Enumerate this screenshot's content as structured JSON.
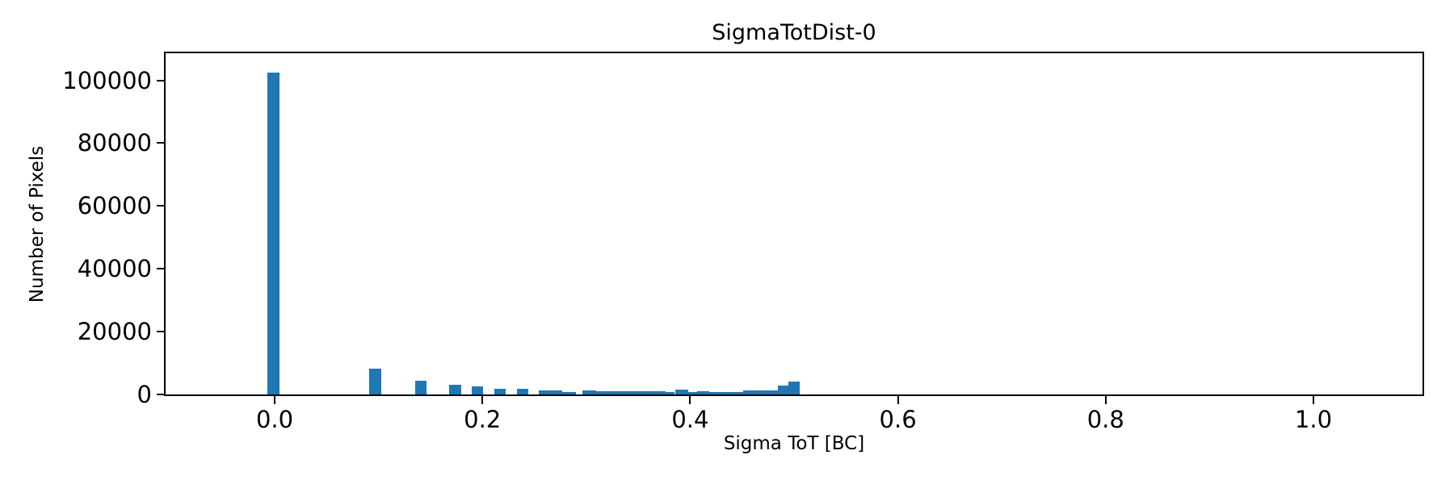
{
  "figure": {
    "background": "#ffffff",
    "text_color": "#000000"
  },
  "chart_data": {
    "type": "bar",
    "title": "SigmaTotDist-0",
    "xlabel": "Sigma ToT [BC]",
    "ylabel": "Number of Pixels",
    "xlim": [
      -0.105,
      1.105
    ],
    "ylim": [
      0,
      108600
    ],
    "grid": false,
    "legend": null,
    "bar_color": "#1f77b4",
    "axis_color": "#000000",
    "xticks": {
      "values": [
        0.0,
        0.2,
        0.4,
        0.6,
        0.8,
        1.0
      ],
      "labels": [
        "0.0",
        "0.2",
        "0.4",
        "0.6",
        "0.8",
        "1.0"
      ]
    },
    "yticks": {
      "values": [
        0,
        20000,
        40000,
        60000,
        80000,
        100000
      ],
      "labels": [
        "0",
        "20000",
        "40000",
        "60000",
        "80000",
        "100000"
      ]
    },
    "bars": [
      {
        "x0": -0.007,
        "x1": 0.0047,
        "count": 102500
      },
      {
        "x0": 0.0907,
        "x1": 0.1023,
        "count": 8100
      },
      {
        "x0": 0.1349,
        "x1": 0.1465,
        "count": 4450
      },
      {
        "x0": 0.1682,
        "x1": 0.1798,
        "count": 3050
      },
      {
        "x0": 0.1899,
        "x1": 0.2008,
        "count": 2550
      },
      {
        "x0": 0.2116,
        "x1": 0.2225,
        "count": 1900
      },
      {
        "x0": 0.2333,
        "x1": 0.2442,
        "count": 1750
      },
      {
        "x0": 0.2543,
        "x1": 0.2767,
        "count": 1270
      },
      {
        "x0": 0.2767,
        "x1": 0.2899,
        "count": 800
      },
      {
        "x0": 0.2961,
        "x1": 0.3093,
        "count": 1270
      },
      {
        "x0": 0.3093,
        "x1": 0.376,
        "count": 1020
      },
      {
        "x0": 0.376,
        "x1": 0.3853,
        "count": 890
      },
      {
        "x0": 0.3853,
        "x1": 0.3984,
        "count": 1530
      },
      {
        "x0": 0.3984,
        "x1": 0.407,
        "count": 780
      },
      {
        "x0": 0.407,
        "x1": 0.4186,
        "count": 1150
      },
      {
        "x0": 0.4186,
        "x1": 0.4295,
        "count": 660
      },
      {
        "x0": 0.4295,
        "x1": 0.4512,
        "count": 900
      },
      {
        "x0": 0.4512,
        "x1": 0.476,
        "count": 1400
      },
      {
        "x0": 0.476,
        "x1": 0.4845,
        "count": 1400
      },
      {
        "x0": 0.4845,
        "x1": 0.4946,
        "count": 2700
      },
      {
        "x0": 0.4946,
        "x1": 0.5054,
        "count": 4200
      }
    ]
  }
}
